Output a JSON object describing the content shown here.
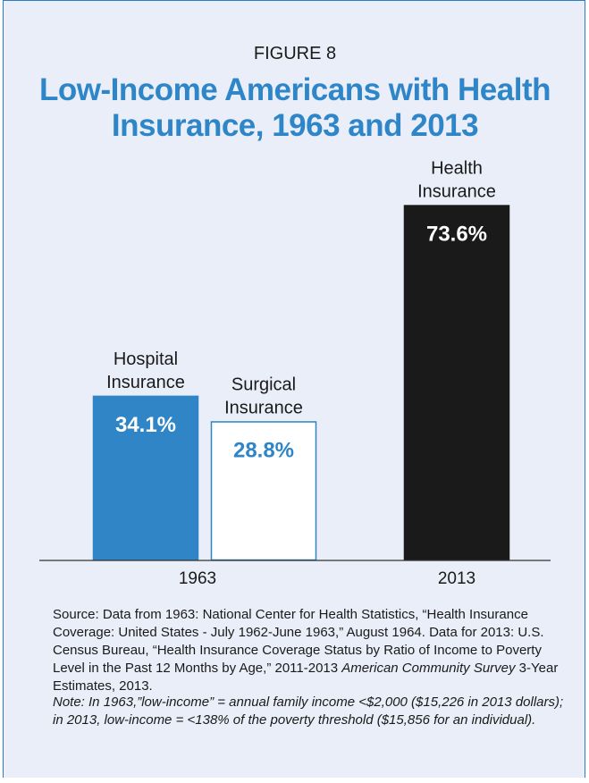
{
  "figure_label": "FIGURE 8",
  "title_line1": "Low-Income Americans with Health",
  "title_line2": "Insurance, 1963 and 2013",
  "source": {
    "part1": "Source: Data from 1963: National Center for Health Statistics, “Health Insurance Coverage: United States - July 1962-June 1963,” August 1964. Data for 2013: U.S. Census Bureau, “Health Insurance Coverage Status by Ratio of Income to Poverty Level in the Past 12 Months by Age,” 2011-2013 ",
    "italic": "American Community Survey",
    "part2": " 3-Year Estimates, 2013."
  },
  "note": "Note: In 1963,”low-income” = annual family income <$2,000 ($15,226 in 2013 dollars); in 2013, low-income = <138% of the poverty threshold ($15,856 for an individual).",
  "colors": {
    "accent": "#2e86c8",
    "hospital_bar": "#2f85c5",
    "surgical_bar": "#ffffff",
    "health_bar": "#1a1a1a",
    "panel_bg": "#e9eef8"
  },
  "chart_data": {
    "type": "bar",
    "title": "Low-Income Americans with Health Insurance, 1963 and 2013",
    "categories": [
      "1963",
      "2013"
    ],
    "bars": [
      {
        "category": "1963",
        "label": [
          "Hospital",
          "Insurance"
        ],
        "value": 34.1,
        "value_label": "34.1%",
        "color": "#2f85c5",
        "border": "#2f85c5",
        "value_color": "#ffffff"
      },
      {
        "category": "1963",
        "label": [
          "Surgical",
          "Insurance"
        ],
        "value": 28.8,
        "value_label": "28.8%",
        "color": "#ffffff",
        "border": "#2f85c5",
        "value_color": "#2e86c8"
      },
      {
        "category": "2013",
        "label": [
          "Health",
          "Insurance"
        ],
        "value": 73.6,
        "value_label": "73.6%",
        "color": "#1a1a1a",
        "border": "#1a1a1a",
        "value_color": "#ffffff"
      }
    ],
    "ylim": [
      0,
      100
    ],
    "grid": false,
    "legend": "none"
  }
}
